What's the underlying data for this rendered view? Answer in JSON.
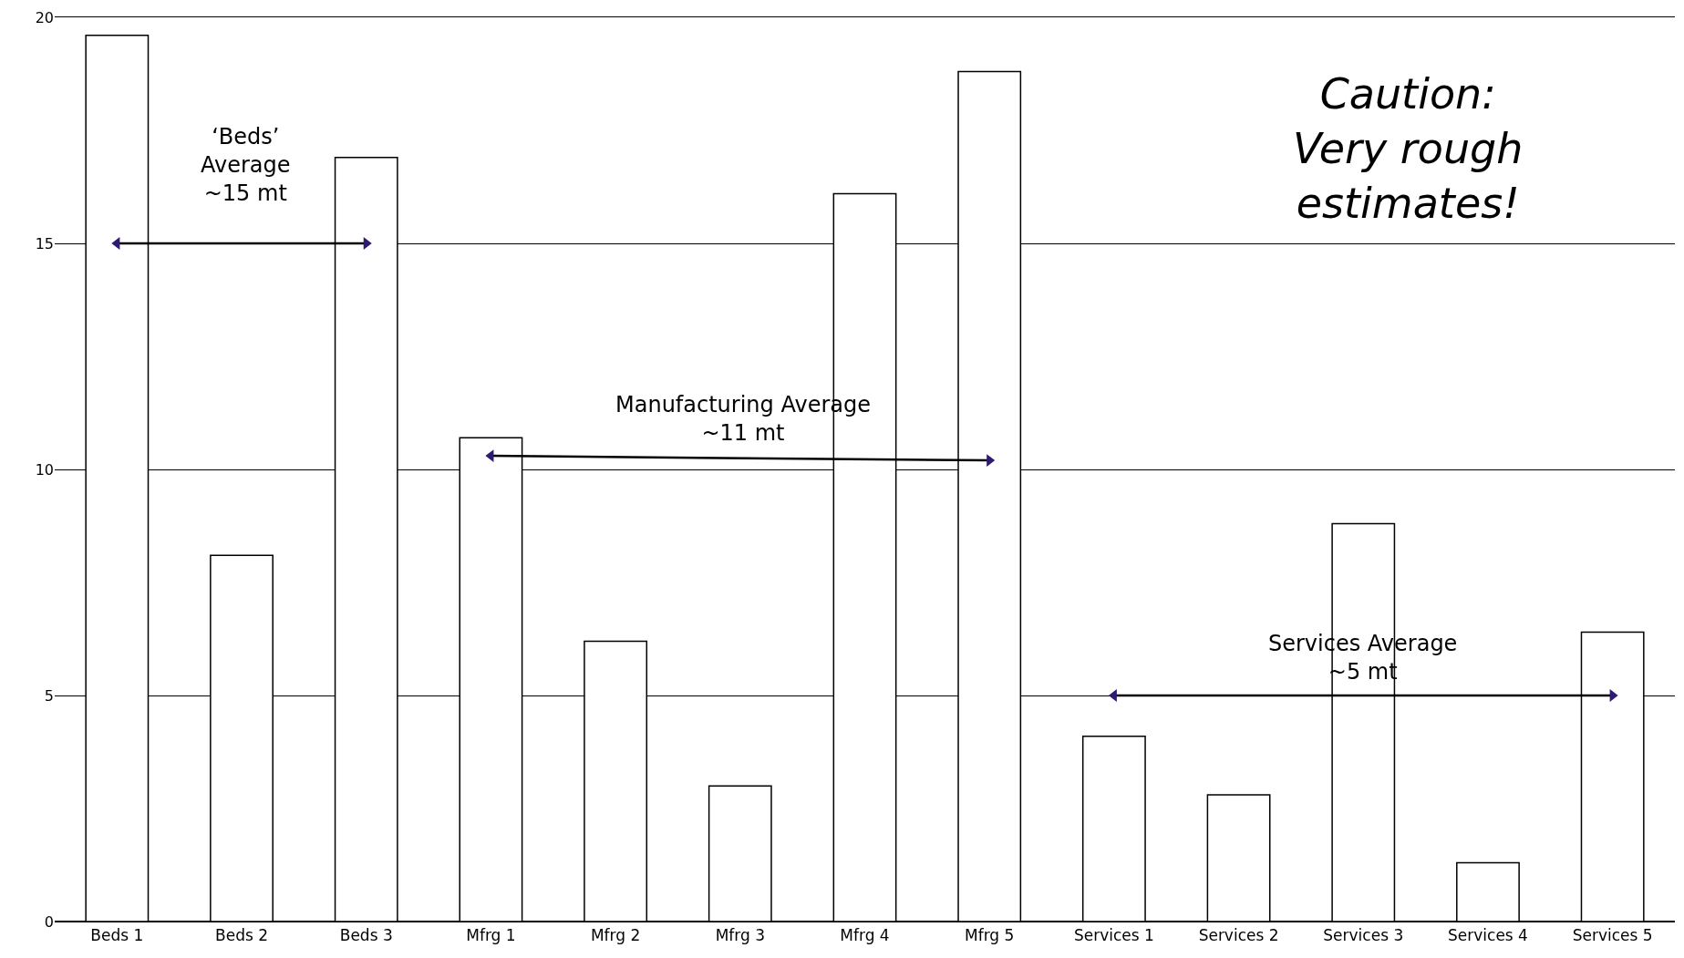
{
  "chart_data": {
    "type": "bar",
    "categories": [
      "Beds 1",
      "Beds 2",
      "Beds 3",
      "Mfrg 1",
      "Mfrg 2",
      "Mfrg 3",
      "Mfrg 4",
      "Mfrg 5",
      "Services 1",
      "Services 2",
      "Services 3",
      "Services 4",
      "Services 5"
    ],
    "series": [
      {
        "color": "#ffffff",
        "values": [
          19.6,
          8.1,
          16.9,
          10.7,
          6.2,
          3.0,
          16.1,
          18.8,
          4.1,
          2.8,
          8.8,
          1.3,
          6.4
        ]
      },
      {
        "type": "line",
        "color": "#000000",
        "marker": "triangle",
        "values": [
          15,
          null,
          15,
          null,
          null,
          null,
          null,
          null,
          null,
          null,
          null,
          null,
          null
        ]
      },
      {
        "type": "line",
        "color": "#000000",
        "marker": "triangle",
        "values": [
          null,
          null,
          null,
          10.3,
          null,
          null,
          null,
          10.2,
          null,
          null,
          null,
          null,
          null
        ]
      },
      {
        "type": "line",
        "color": "#000000",
        "marker": "triangle",
        "values": [
          null,
          null,
          null,
          null,
          null,
          null,
          null,
          null,
          5.0,
          null,
          null,
          null,
          5.0
        ]
      }
    ],
    "ylim": [
      0,
      20
    ],
    "yticks": [
      0,
      5,
      10,
      15,
      20
    ],
    "grid": "y",
    "annotations": [
      "‘Beds’\nAverage\n~15 mt",
      "Manufacturing Average\n~11 mt",
      "Services Average\n~5 mt",
      "Caution:\nVery rough\nestimates!"
    ]
  }
}
